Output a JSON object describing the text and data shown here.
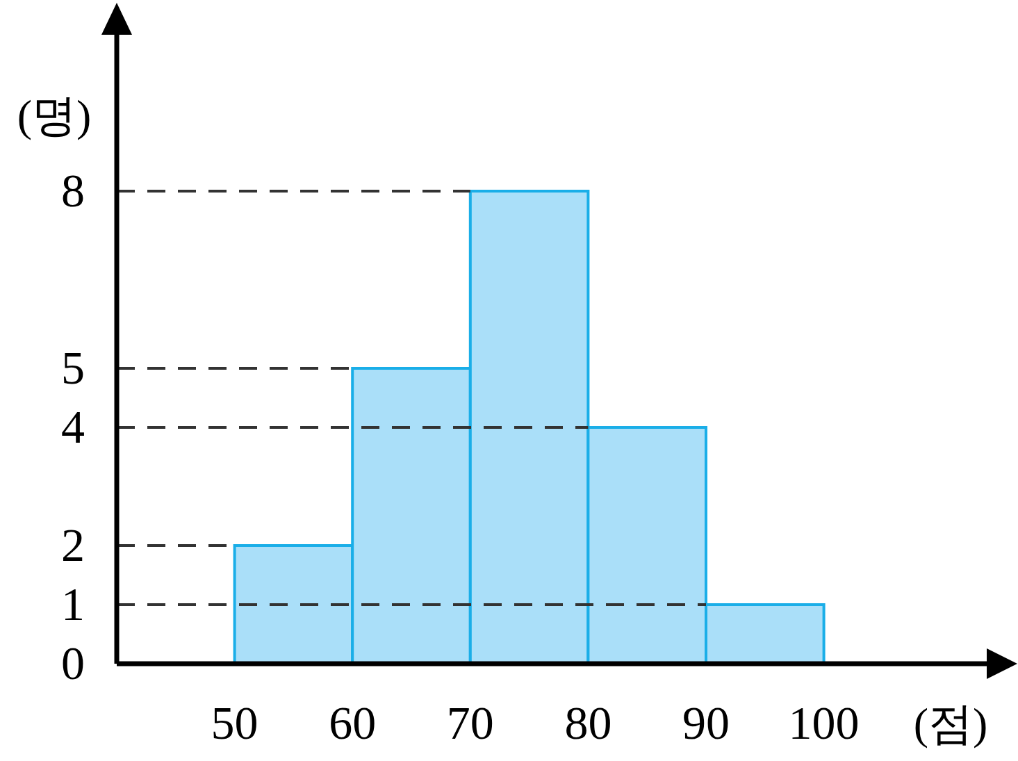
{
  "chart_data": {
    "type": "histogram",
    "xlabel": "(점)",
    "ylabel": "(명)",
    "bins": [
      50,
      60,
      70,
      80,
      90,
      100
    ],
    "values": [
      2,
      5,
      8,
      4,
      1
    ],
    "color": "#aadff9",
    "xlim": [
      40,
      115
    ],
    "xticks": [
      50,
      60,
      70,
      80,
      90,
      100
    ],
    "ylim": [
      0,
      11
    ],
    "yticks": [
      0,
      1,
      2,
      4,
      5,
      8
    ],
    "ref_lines": [
      {
        "axis": "y",
        "value": 1,
        "color": "#333333",
        "line_style": "dashed"
      },
      {
        "axis": "y",
        "value": 2,
        "color": "#333333",
        "line_style": "dashed"
      },
      {
        "axis": "y",
        "value": 4,
        "color": "#333333",
        "line_style": "dashed"
      },
      {
        "axis": "y",
        "value": 5,
        "color": "#333333",
        "line_style": "dashed"
      },
      {
        "axis": "y",
        "value": 8,
        "color": "#333333",
        "line_style": "dashed"
      }
    ],
    "grid": false
  }
}
